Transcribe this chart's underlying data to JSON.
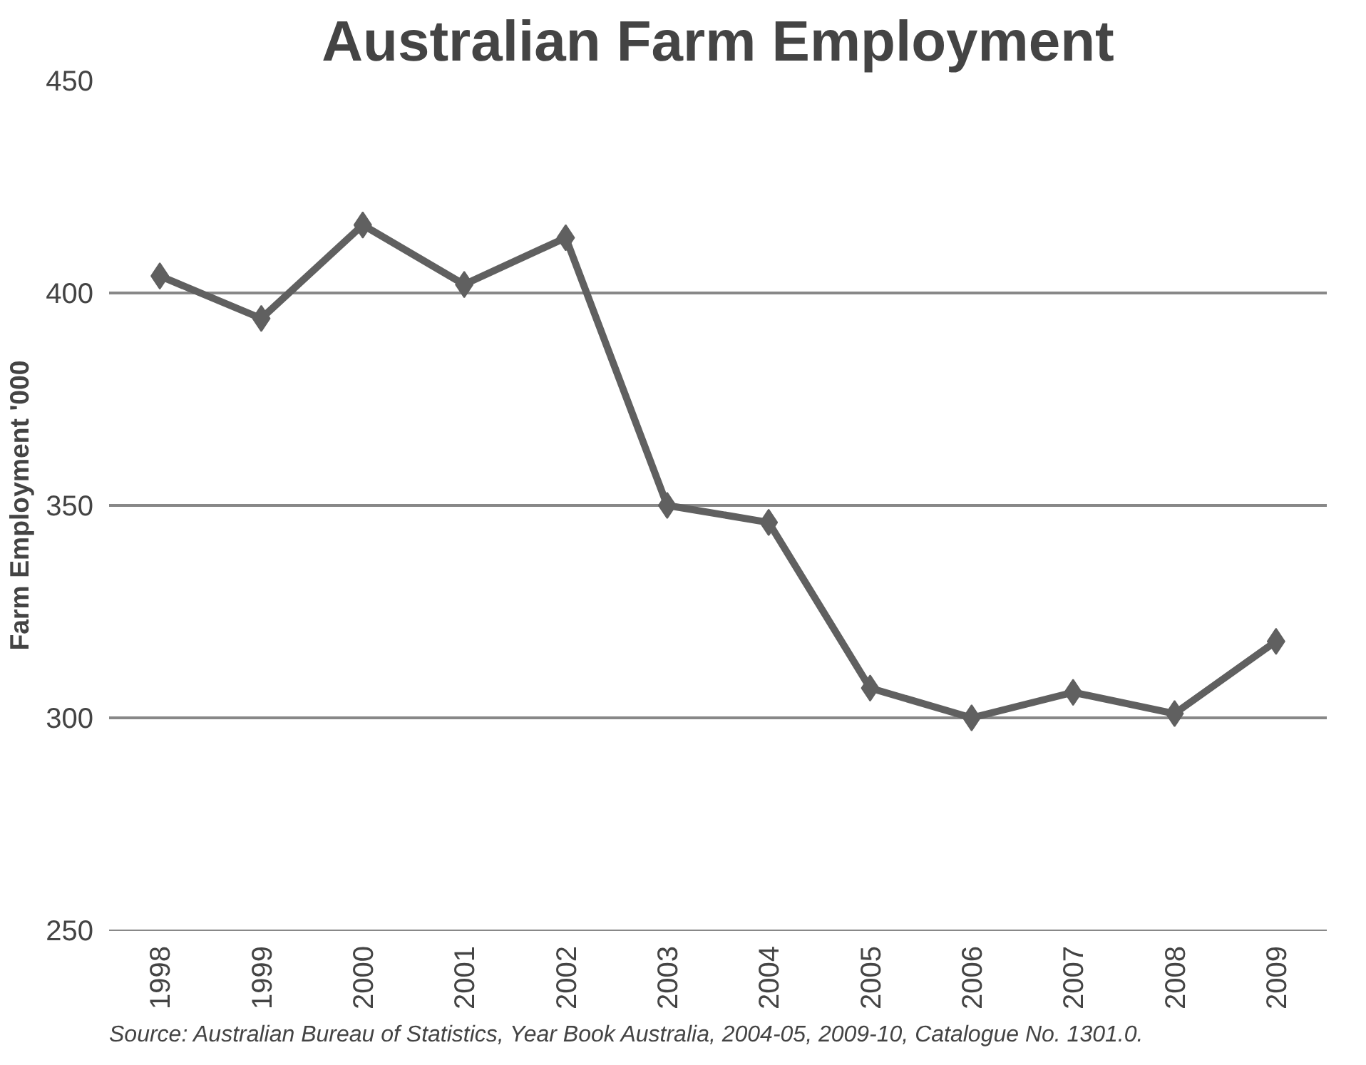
{
  "chart_data": {
    "type": "line",
    "title": "Australian Farm Employment",
    "ylabel": "Farm Employment '000",
    "categories": [
      "1998",
      "1999",
      "2000",
      "2001",
      "2002",
      "2003",
      "2004",
      "2005",
      "2006",
      "2007",
      "2008",
      "2009"
    ],
    "series": [
      {
        "color": "#606060",
        "values": [
          404,
          394,
          416,
          402,
          413,
          350,
          346,
          307,
          300,
          306,
          301,
          318
        ]
      }
    ],
    "ylim": [
      250,
      450
    ],
    "yticks": [
      250,
      300,
      350,
      400,
      450
    ],
    "grid": "y",
    "marker": "diamond",
    "line_style": "solid",
    "annotations": [
      "Source: Australian Bureau of Statistics, Year Book Australia, 2004-05, 2009-10, Catalogue No. 1301.0."
    ]
  }
}
